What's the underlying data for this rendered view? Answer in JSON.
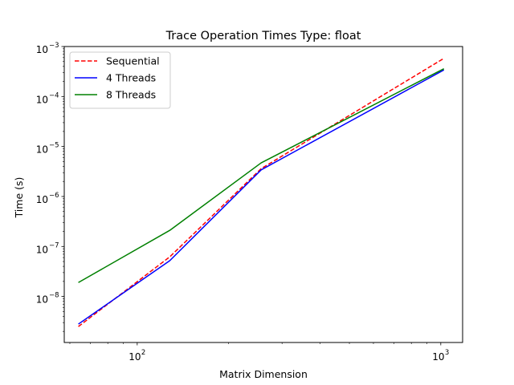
{
  "chart_data": {
    "type": "line",
    "title": "Trace Operation Times Type: float",
    "xlabel": "Matrix Dimension",
    "ylabel": "Time (s)",
    "xscale": "log",
    "yscale": "log",
    "xlim": [
      57.5,
      1180
    ],
    "ylim": [
      1.2e-09,
      0.001
    ],
    "grid": false,
    "legend_position": "top-left",
    "x_ticks": [
      {
        "value": 100,
        "base": "10",
        "exp": "2"
      },
      {
        "value": 1000,
        "base": "10",
        "exp": "3"
      }
    ],
    "y_ticks": [
      {
        "value": 1e-08,
        "base": "10",
        "exp": "−8"
      },
      {
        "value": 1e-07,
        "base": "10",
        "exp": "−7"
      },
      {
        "value": 1e-06,
        "base": "10",
        "exp": "−6"
      },
      {
        "value": 1e-05,
        "base": "10",
        "exp": "−5"
      },
      {
        "value": 0.0001,
        "base": "10",
        "exp": "−4"
      },
      {
        "value": 0.001,
        "base": "10",
        "exp": "−3"
      }
    ],
    "x": [
      64,
      128,
      256,
      1024
    ],
    "series": [
      {
        "name": "Sequential",
        "color": "#ff0000",
        "dash": "dashed",
        "values": [
          2.5e-09,
          6.2e-08,
          3.6e-06,
          0.00058
        ]
      },
      {
        "name": "4 Threads",
        "color": "#0000ff",
        "dash": "solid",
        "values": [
          2.8e-09,
          5.2e-08,
          3.4e-06,
          0.00034
        ]
      },
      {
        "name": "8 Threads",
        "color": "#008000",
        "dash": "solid",
        "values": [
          1.9e-08,
          2.1e-07,
          4.7e-06,
          0.00036
        ]
      }
    ]
  }
}
